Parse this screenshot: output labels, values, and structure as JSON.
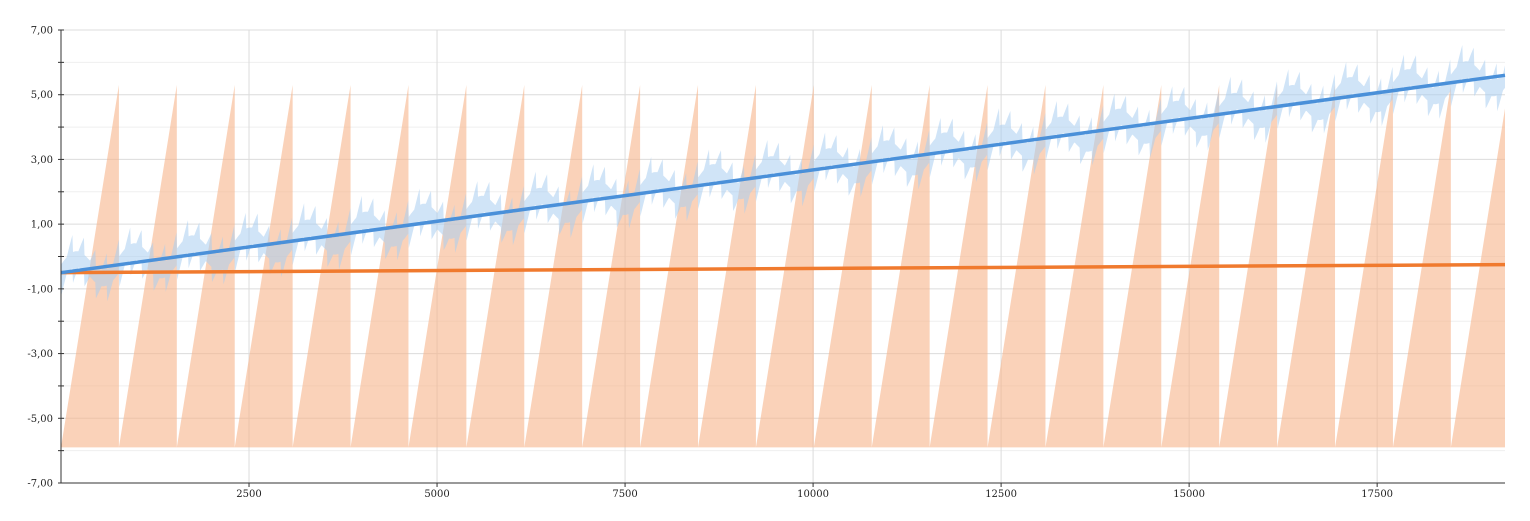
{
  "chart_data": {
    "type": "area",
    "title": "",
    "xlabel": "",
    "ylabel": "",
    "xlim": [
      0,
      19200
    ],
    "ylim": [
      -7,
      7
    ],
    "grid": true,
    "legend": "none",
    "x_ticks": [
      2500,
      5000,
      7500,
      10000,
      12500,
      15000,
      17500
    ],
    "x_tick_labels": [
      "2500",
      "5000",
      "7500",
      "10000",
      "12500",
      "15000",
      "17500"
    ],
    "y_ticks": [
      7,
      5,
      3,
      1,
      -1,
      -3,
      -5,
      -7
    ],
    "y_tick_labels": [
      "7,00",
      "5,00",
      "3,00",
      "1,00",
      "-1,00",
      "-3,00",
      "-5,00",
      "-7,00"
    ],
    "series": [
      {
        "color": "#4a90d9",
        "band_color": "#a9cdf0",
        "line": {
          "x": [
            0,
            19200
          ],
          "y": [
            -0.5,
            5.6
          ]
        },
        "band": {
          "x": [
            0,
            19200
          ],
          "center_start": -0.5,
          "center_end": 5.6,
          "sawtooth_period": 154,
          "sawtooth_amplitude": 0.55,
          "modulation_period": 770,
          "modulation_amplitude": 0.35
        }
      },
      {
        "color": "#f07a2e",
        "band_color": "#f6b48a",
        "line": {
          "x": [
            0,
            19200
          ],
          "y": [
            -0.5,
            -0.25
          ]
        },
        "band": {
          "x": [
            0,
            19200
          ],
          "sawtooth_period": 770,
          "low": -5.9,
          "high": 5.3
        }
      }
    ]
  }
}
